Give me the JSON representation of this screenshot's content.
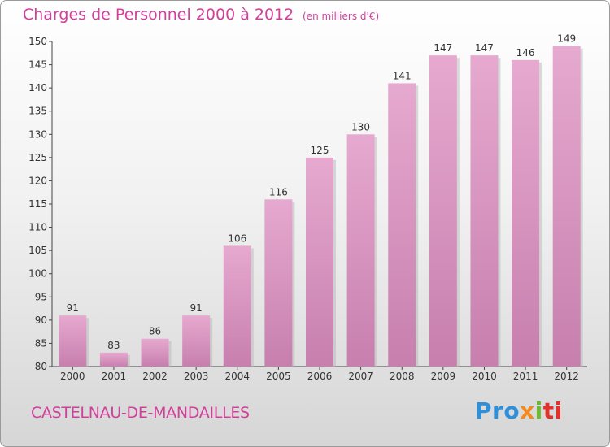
{
  "chart_data": {
    "type": "bar",
    "title": "Charges de Personnel 2000 à 2012",
    "subtitle": "(en milliers d'€)",
    "categories": [
      "2000",
      "2001",
      "2002",
      "2003",
      "2004",
      "2005",
      "2006",
      "2007",
      "2008",
      "2009",
      "2010",
      "2011",
      "2012"
    ],
    "values": [
      91,
      83,
      86,
      91,
      106,
      116,
      125,
      130,
      141,
      147,
      147,
      146,
      149
    ],
    "ylim": [
      80,
      150
    ],
    "yticks": [
      80,
      85,
      90,
      95,
      100,
      105,
      110,
      115,
      120,
      125,
      130,
      135,
      140,
      145,
      150
    ],
    "xlabel": "",
    "ylabel": "",
    "grid": false,
    "bar_color": "#c77fae",
    "bar_color_light": "#e6a9cf"
  },
  "commune": "CASTELNAU-DE-MANDAILLES",
  "logo": {
    "text": "Proxiti"
  }
}
